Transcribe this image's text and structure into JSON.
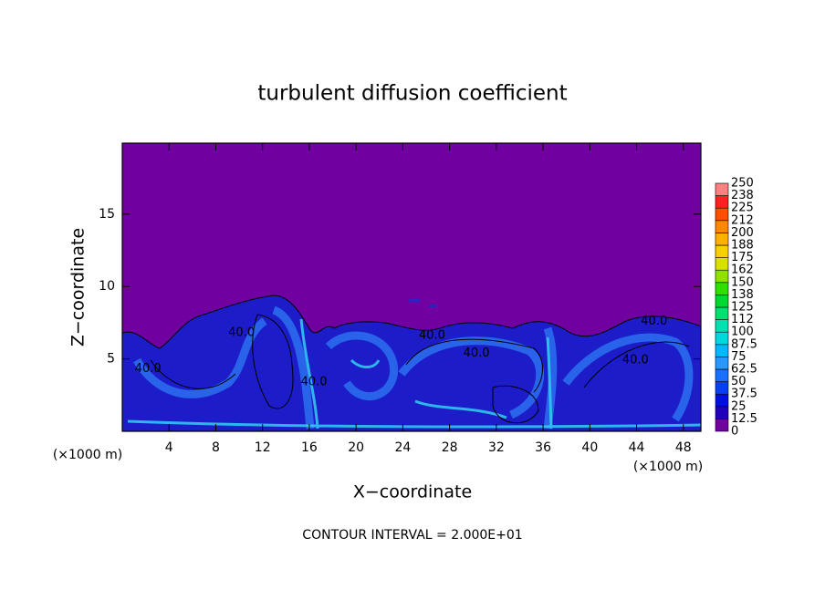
{
  "chart_data": {
    "type": "contour",
    "title": "turbulent diffusion coefficient",
    "xlabel": "X−coordinate",
    "ylabel": "Z−coordinate",
    "unit_label": "(×1000 m)",
    "annotation": "CONTOUR INTERVAL = 2.000E+01",
    "xlim": [
      0,
      49.5
    ],
    "ylim": [
      0,
      19.9
    ],
    "xticks": [
      4,
      8,
      12,
      16,
      20,
      24,
      28,
      32,
      36,
      40,
      44,
      48
    ],
    "yticks": [
      5,
      10,
      15
    ],
    "colorbar_ticks": [
      0,
      12.5,
      25,
      37.5,
      50,
      62.5,
      75,
      87.5,
      100,
      112,
      125,
      138,
      150,
      162,
      175,
      188,
      200,
      212,
      225,
      238,
      250
    ],
    "colorbar_colors": [
      "#7000a0",
      "#2000b8",
      "#0010d8",
      "#0840f0",
      "#1870ff",
      "#2898ff",
      "#00b8ff",
      "#00d8e0",
      "#00e0b0",
      "#00e070",
      "#00d830",
      "#30e000",
      "#90e000",
      "#d8e000",
      "#f8d000",
      "#ffb000",
      "#ff8800",
      "#ff5000",
      "#ff2020",
      "#ff8080"
    ],
    "contour_labels": [
      {
        "text": "40.0",
        "x": 2.2,
        "y": 4.3
      },
      {
        "text": "40.0",
        "x": 10.2,
        "y": 6.8
      },
      {
        "text": "40.0",
        "x": 16.4,
        "y": 3.4
      },
      {
        "text": "40.0",
        "x": 26.5,
        "y": 6.6
      },
      {
        "text": "40.0",
        "x": 30.3,
        "y": 5.4
      },
      {
        "text": "40.0",
        "x": 43.9,
        "y": 4.9
      },
      {
        "text": "40.0",
        "x": 45.5,
        "y": 7.6
      }
    ]
  }
}
